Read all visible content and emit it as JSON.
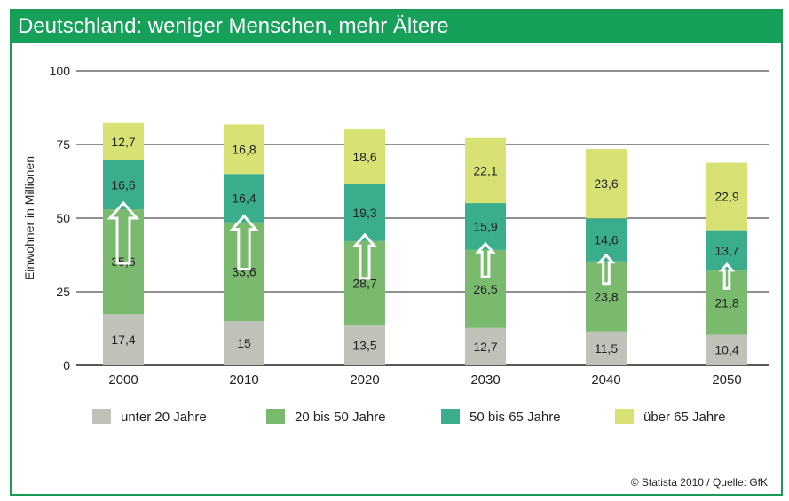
{
  "title": "Deutschland: weniger Menschen, mehr Ältere",
  "copyright": "© Statista 2010 / Quelle: GfK",
  "colors": {
    "title_bg": "#17a05a",
    "unter_20": "#bfc2b9",
    "20_50": "#7aba6f",
    "50_65": "#3aad8c",
    "ueber_65": "#d8e274"
  },
  "chart_data": {
    "type": "bar",
    "stacked": true,
    "categories": [
      "2000",
      "2010",
      "2020",
      "2030",
      "2040",
      "2050"
    ],
    "series": [
      {
        "name": "unter 20 Jahre",
        "color": "#bfc2b9",
        "values": [
          17.4,
          15,
          13.5,
          12.7,
          11.5,
          10.4
        ],
        "labels": [
          "17,4",
          "15",
          "13,5",
          "12,7",
          "11,5",
          "10,4"
        ]
      },
      {
        "name": "20 bis 50 Jahre",
        "color": "#7aba6f",
        "values": [
          35.6,
          33.6,
          28.7,
          26.5,
          23.8,
          21.8
        ],
        "labels": [
          "35,6",
          "33,6",
          "28,7",
          "26,5",
          "23,8",
          "21,8"
        ]
      },
      {
        "name": "50 bis 65 Jahre",
        "color": "#3aad8c",
        "values": [
          16.6,
          16.4,
          19.3,
          15.9,
          14.6,
          13.7
        ],
        "labels": [
          "16,6",
          "16,4",
          "19,3",
          "15,9",
          "14,6",
          "13,7"
        ]
      },
      {
        "name": "über 65 Jahre",
        "color": "#d8e274",
        "values": [
          12.7,
          16.8,
          18.6,
          22.1,
          23.6,
          22.9
        ],
        "labels": [
          "12,7",
          "16,8",
          "18,6",
          "22,1",
          "23,6",
          "22,9"
        ]
      }
    ],
    "ylabel": "Einwohner in Millionen",
    "ylim": [
      0,
      100
    ],
    "yticks": [
      0,
      25,
      50,
      75,
      100
    ],
    "ytick_labels": [
      "0",
      "25",
      "50",
      "75",
      "100"
    ],
    "grid": true,
    "legend": "bottom",
    "annotation": "up-arrow in the 20 bis 50 Jahre segment, shrinking over time"
  }
}
